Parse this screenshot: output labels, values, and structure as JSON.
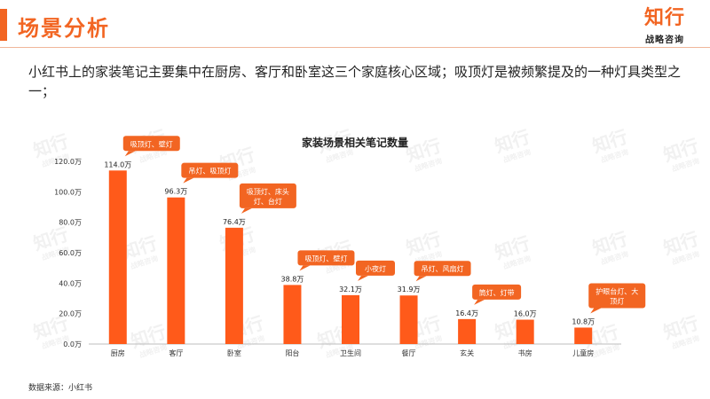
{
  "header": {
    "title": "场景分析",
    "logo_main": "知行",
    "logo_sub": "战略咨询"
  },
  "description": "小红书上的家装笔记主要集中在厨房、客厅和卧室这三个家庭核心区域；吸顶灯是被频繁提及的一种灯具类型之一；",
  "source": "数据来源：小红书",
  "watermark": {
    "main": "知行",
    "sub": "战略咨询"
  },
  "colors": {
    "accent": "#f26522",
    "bar": "#ff5a1a"
  },
  "chart_data": {
    "type": "bar",
    "title": "家装场景相关笔记数量",
    "categories": [
      "厨房",
      "客厅",
      "卧室",
      "阳台",
      "卫生间",
      "餐厅",
      "玄关",
      "书房",
      "儿童房"
    ],
    "values": [
      114.0,
      96.3,
      76.4,
      38.8,
      32.1,
      31.9,
      16.4,
      16.0,
      10.8
    ],
    "value_labels": [
      "114.0万",
      "96.3万",
      "76.4万",
      "38.8万",
      "32.1万",
      "31.9万",
      "16.4万",
      "16.0万",
      "10.8万"
    ],
    "y_ticks": [
      0,
      20,
      40,
      60,
      80,
      100,
      120
    ],
    "y_tick_labels": [
      "0.0万",
      "20.0万",
      "40.0万",
      "60.0万",
      "80.0万",
      "100.0万",
      "120.0万"
    ],
    "ylim": [
      0,
      120
    ],
    "grid": false,
    "annotations": [
      {
        "category": "厨房",
        "lines": [
          "吸顶灯、壁灯"
        ]
      },
      {
        "category": "客厅",
        "lines": [
          "吊灯、吸顶灯"
        ]
      },
      {
        "category": "卧室",
        "lines": [
          "吸顶灯、床头",
          "灯、台灯"
        ]
      },
      {
        "category": "阳台",
        "lines": [
          "吸顶灯、壁灯"
        ]
      },
      {
        "category": "卫生间",
        "lines": [
          "小夜灯"
        ]
      },
      {
        "category": "餐厅",
        "lines": [
          "吊灯、风扇灯"
        ]
      },
      {
        "category": "玄关",
        "lines": [
          "筒灯、灯带"
        ]
      },
      {
        "category": "书房",
        "lines": []
      },
      {
        "category": "儿童房",
        "lines": [
          "护眼台灯、大",
          "顶灯"
        ]
      }
    ]
  }
}
